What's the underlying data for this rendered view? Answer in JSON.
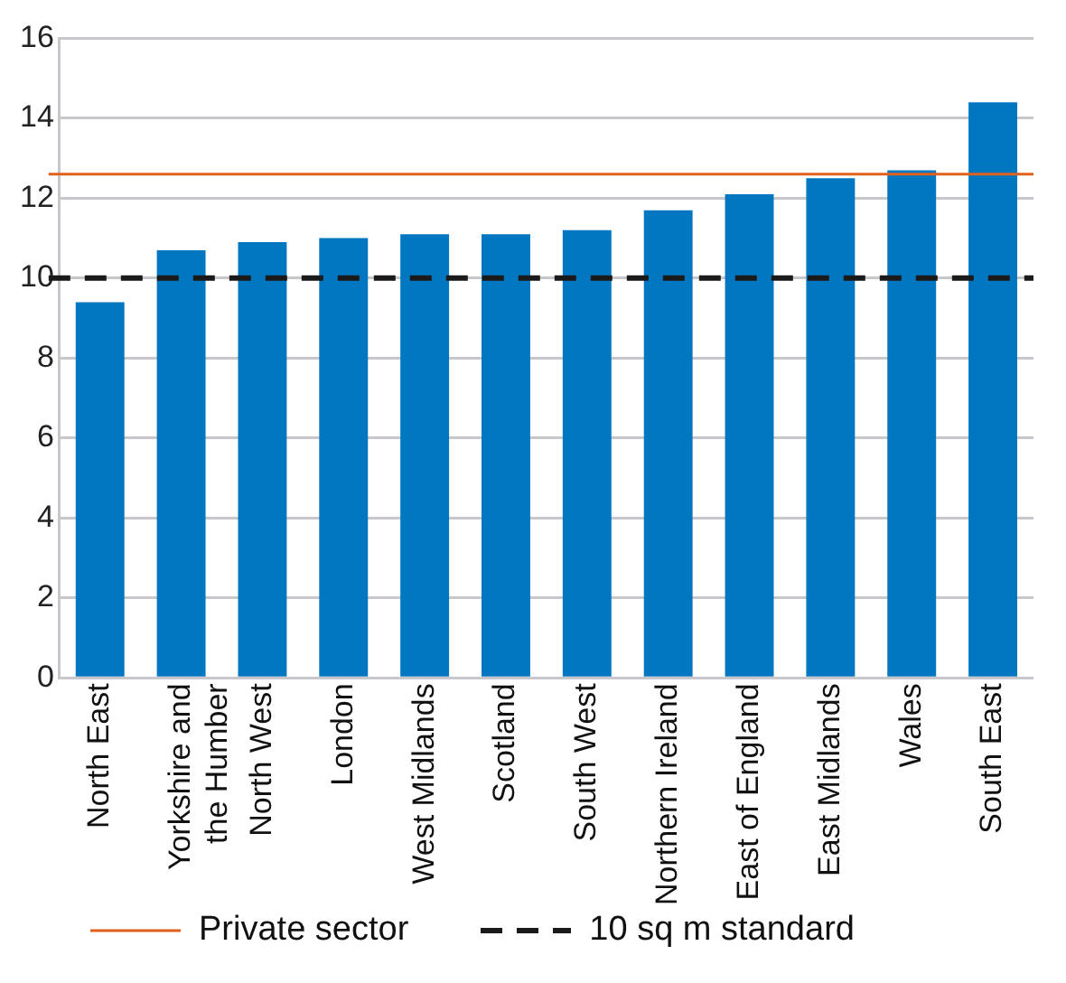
{
  "chart_data": {
    "type": "bar",
    "categories": [
      "North East",
      "Yorkshire and the Humber",
      "North West",
      "London",
      "West Midlands",
      "Scotland",
      "South West",
      "Northern Ireland",
      "East of England",
      "East Midlands",
      "Wales",
      "South East"
    ],
    "values": [
      9.4,
      10.7,
      10.9,
      11.0,
      11.1,
      11.1,
      11.2,
      11.7,
      12.1,
      12.5,
      12.7,
      14.4
    ],
    "color": "#0077c0",
    "ylim": [
      0,
      16
    ],
    "yticks": [
      0,
      2,
      4,
      6,
      8,
      10,
      12,
      14,
      16
    ],
    "grid": "y",
    "legend": "bottom",
    "ref_lines": [
      {
        "axis": "y",
        "value": 12.6,
        "label": "Private sector",
        "color": "#e0601c",
        "line_style": "solid"
      },
      {
        "axis": "y",
        "value": 10,
        "label": "10 sq m standard",
        "color": "#1a1a1a",
        "line_style": "dashed"
      }
    ]
  }
}
